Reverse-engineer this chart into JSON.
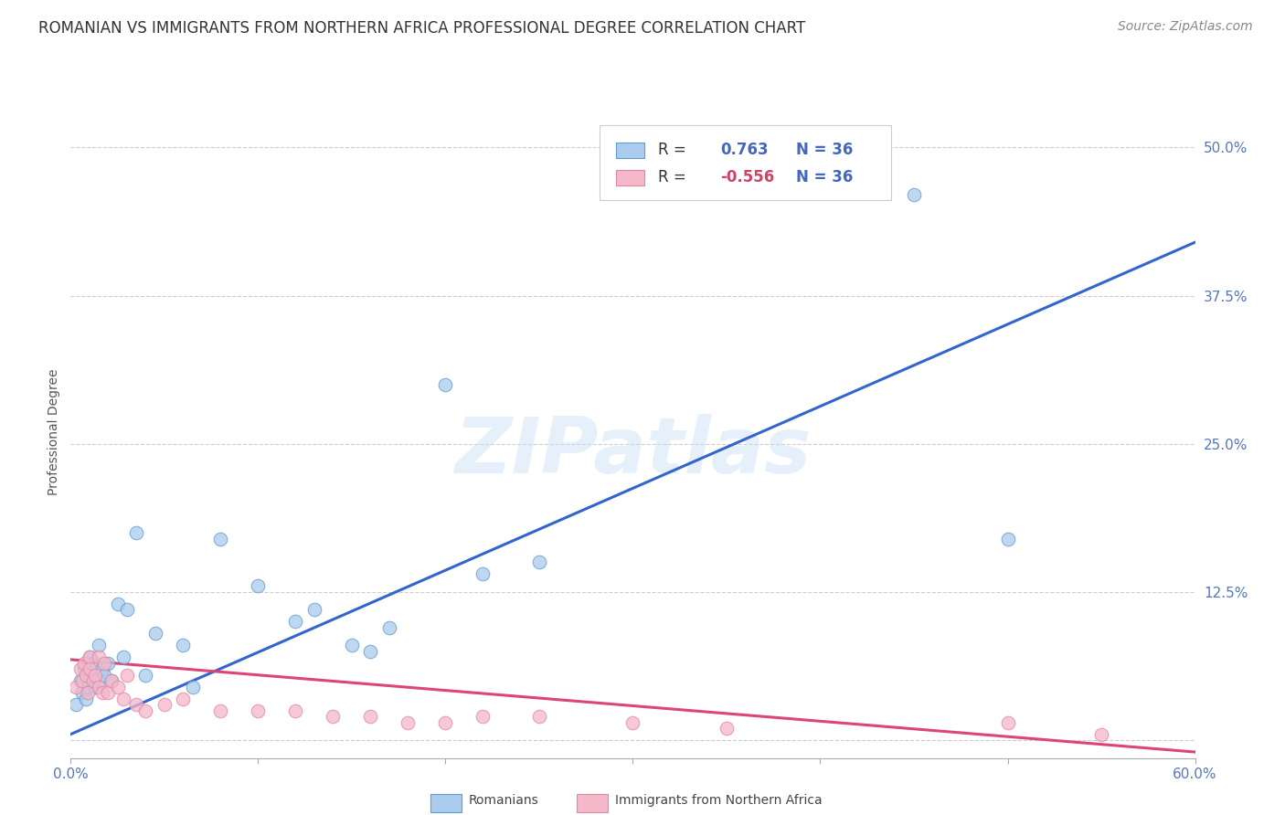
{
  "title": "ROMANIAN VS IMMIGRANTS FROM NORTHERN AFRICA PROFESSIONAL DEGREE CORRELATION CHART",
  "source": "Source: ZipAtlas.com",
  "ylabel": "Professional Degree",
  "watermark": "ZIPatlas",
  "xlim": [
    0.0,
    0.6
  ],
  "ylim": [
    -0.015,
    0.535
  ],
  "xticks": [
    0.0,
    0.1,
    0.2,
    0.3,
    0.4,
    0.5,
    0.6
  ],
  "xtick_labels": [
    "0.0%",
    "",
    "",
    "",
    "",
    "",
    "60.0%"
  ],
  "yticks": [
    0.0,
    0.125,
    0.25,
    0.375,
    0.5
  ],
  "ytick_labels": [
    "",
    "12.5%",
    "25.0%",
    "37.5%",
    "50.0%"
  ],
  "blue_scatter_x": [
    0.003,
    0.005,
    0.006,
    0.007,
    0.008,
    0.009,
    0.01,
    0.01,
    0.012,
    0.013,
    0.015,
    0.015,
    0.017,
    0.018,
    0.02,
    0.022,
    0.025,
    0.028,
    0.03,
    0.035,
    0.04,
    0.045,
    0.06,
    0.065,
    0.08,
    0.1,
    0.12,
    0.13,
    0.15,
    0.16,
    0.17,
    0.2,
    0.22,
    0.25,
    0.45,
    0.5
  ],
  "blue_scatter_y": [
    0.03,
    0.05,
    0.04,
    0.06,
    0.035,
    0.045,
    0.055,
    0.07,
    0.065,
    0.045,
    0.05,
    0.08,
    0.06,
    0.055,
    0.065,
    0.05,
    0.115,
    0.07,
    0.11,
    0.175,
    0.055,
    0.09,
    0.08,
    0.045,
    0.17,
    0.13,
    0.1,
    0.11,
    0.08,
    0.075,
    0.095,
    0.3,
    0.14,
    0.15,
    0.46,
    0.17
  ],
  "pink_scatter_x": [
    0.003,
    0.005,
    0.006,
    0.007,
    0.008,
    0.009,
    0.01,
    0.01,
    0.012,
    0.013,
    0.015,
    0.015,
    0.017,
    0.018,
    0.02,
    0.022,
    0.025,
    0.028,
    0.03,
    0.035,
    0.04,
    0.05,
    0.06,
    0.08,
    0.1,
    0.12,
    0.14,
    0.16,
    0.18,
    0.2,
    0.22,
    0.25,
    0.3,
    0.35,
    0.5,
    0.55
  ],
  "pink_scatter_y": [
    0.045,
    0.06,
    0.05,
    0.065,
    0.055,
    0.04,
    0.07,
    0.06,
    0.05,
    0.055,
    0.045,
    0.07,
    0.04,
    0.065,
    0.04,
    0.05,
    0.045,
    0.035,
    0.055,
    0.03,
    0.025,
    0.03,
    0.035,
    0.025,
    0.025,
    0.025,
    0.02,
    0.02,
    0.015,
    0.015,
    0.02,
    0.02,
    0.015,
    0.01,
    0.015,
    0.005
  ],
  "blue_line_x": [
    0.0,
    0.6
  ],
  "blue_line_y": [
    0.005,
    0.42
  ],
  "pink_line_x": [
    0.0,
    0.6
  ],
  "pink_line_y": [
    0.068,
    -0.01
  ],
  "blue_line_color": "#3366cc",
  "blue_scatter_color": "#aaccee",
  "blue_edge_color": "#6699cc",
  "pink_line_color": "#dd4477",
  "pink_scatter_color": "#f4b8c8",
  "pink_edge_color": "#dd88aa",
  "background_color": "#ffffff",
  "grid_color": "#cccccc",
  "tick_color": "#5577bb",
  "title_color": "#333333",
  "ylabel_color": "#555555",
  "source_color": "#888888",
  "legend_text_color_dark": "#333333",
  "legend_value_color": "#4466bb",
  "legend_neg_color": "#cc4466",
  "title_fontsize": 12,
  "axis_label_fontsize": 10,
  "tick_label_fontsize": 11,
  "source_fontsize": 10,
  "legend_fontsize": 12
}
